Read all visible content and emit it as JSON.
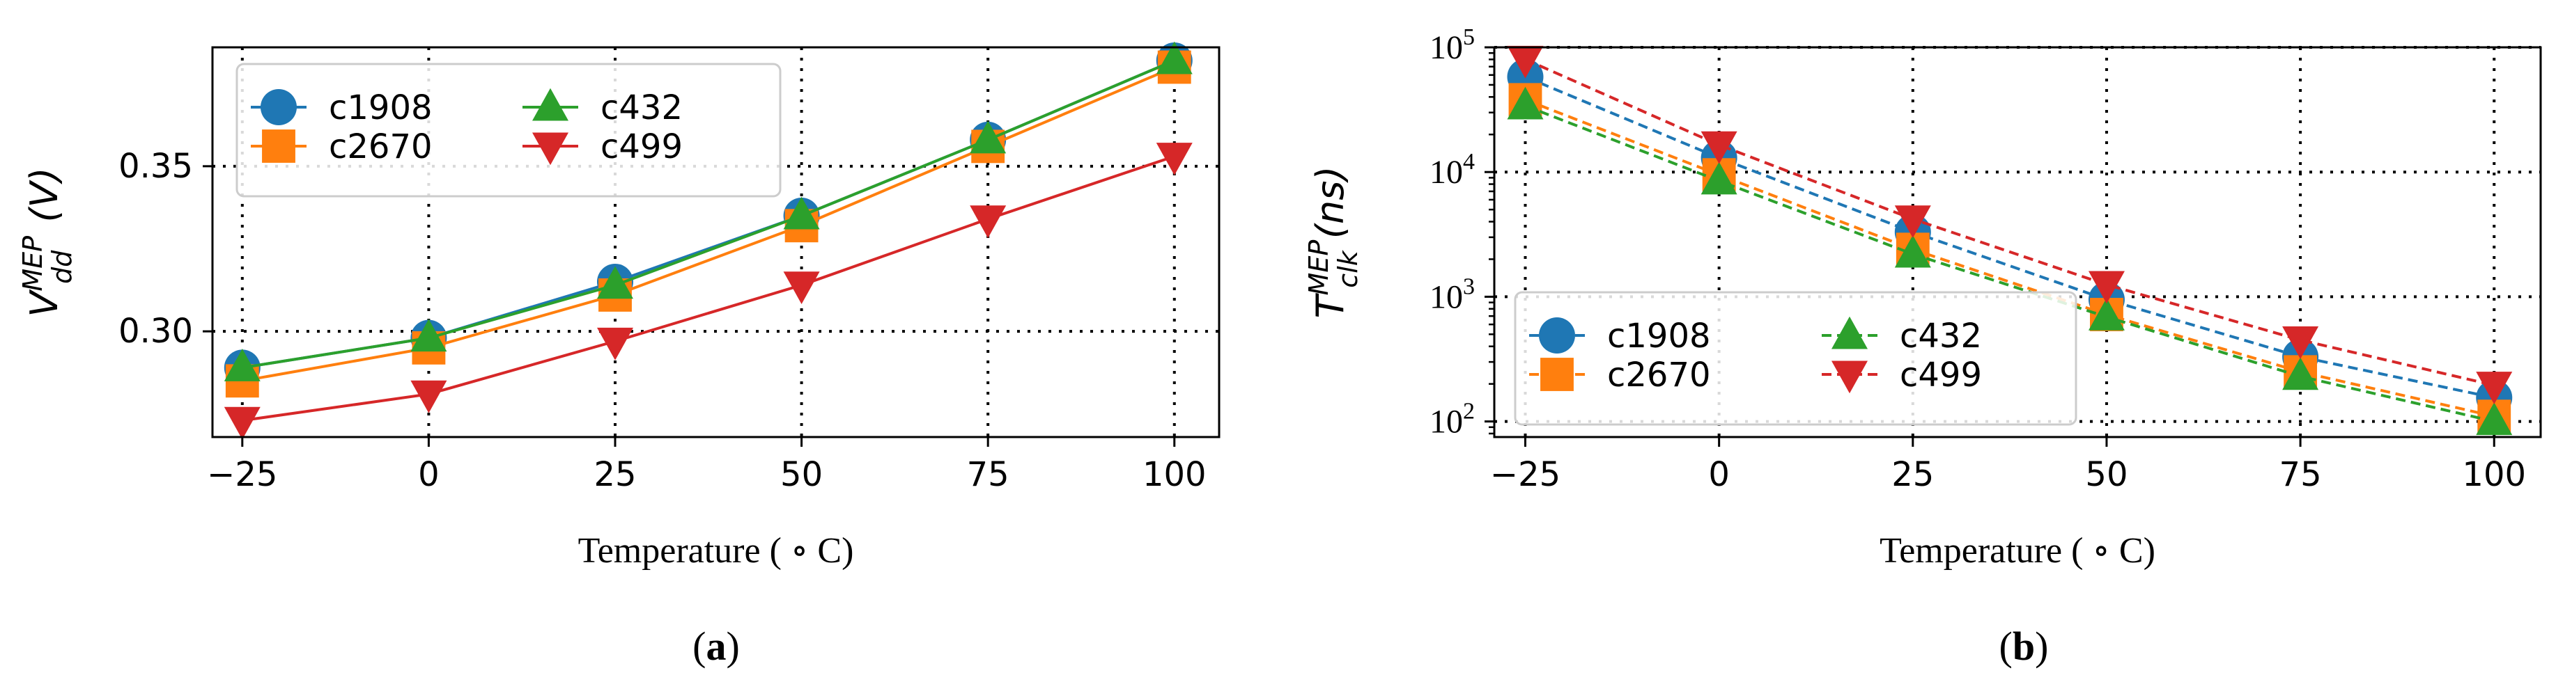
{
  "chart_data": [
    {
      "id": "a",
      "type": "line",
      "panel_label": "(a)",
      "title": "",
      "xlabel": "Temperature ( ∘ C)",
      "ylabel_base": "V",
      "ylabel_sup": "MEP",
      "ylabel_sub": "dd",
      "ylabel_unit": " (V)",
      "yscale": "linear",
      "x": [
        -25,
        0,
        25,
        50,
        75,
        100
      ],
      "xlim": [
        -29,
        106
      ],
      "ylim": [
        0.268,
        0.386
      ],
      "xticks": [
        -25,
        0,
        25,
        50,
        75,
        100
      ],
      "xtick_labels": [
        "−25",
        "0",
        "25",
        "50",
        "75",
        "100"
      ],
      "yticks": [
        0.3,
        0.35
      ],
      "ytick_labels": [
        "0.30",
        "0.35"
      ],
      "grid": "dotted",
      "line_style": "solid",
      "legend": {
        "placement": "upper-left",
        "columns": 2
      },
      "series": [
        {
          "name": "c1908",
          "marker": "circle",
          "color": "#1f77b4",
          "values": [
            0.289,
            0.298,
            0.315,
            0.335,
            0.358,
            0.382
          ]
        },
        {
          "name": "c2670",
          "marker": "square",
          "color": "#ff7f0e",
          "values": [
            0.285,
            0.295,
            0.311,
            0.332,
            0.356,
            0.38
          ]
        },
        {
          "name": "c432",
          "marker": "triangle-up",
          "color": "#2ca02c",
          "values": [
            0.289,
            0.298,
            0.314,
            0.335,
            0.358,
            0.382
          ]
        },
        {
          "name": "c499",
          "marker": "triangle-down",
          "color": "#d62728",
          "values": [
            0.273,
            0.281,
            0.297,
            0.314,
            0.334,
            0.353
          ]
        }
      ]
    },
    {
      "id": "b",
      "type": "line",
      "panel_label": "(b)",
      "title": "",
      "xlabel": "Temperature ( ∘ C)",
      "ylabel_base": "T",
      "ylabel_sup": "MEP",
      "ylabel_sub": "clk",
      "ylabel_unit": " (ns)",
      "yscale": "log",
      "x": [
        -25,
        0,
        25,
        50,
        75,
        100
      ],
      "xlim": [
        -29,
        106
      ],
      "ylim": [
        75,
        100000
      ],
      "xticks": [
        -25,
        0,
        25,
        50,
        75,
        100
      ],
      "xtick_labels": [
        "−25",
        "0",
        "25",
        "50",
        "75",
        "100"
      ],
      "yticks": [
        100,
        1000,
        10000,
        100000
      ],
      "ytick_base": "10",
      "ytick_exponents": [
        "2",
        "3",
        "4",
        "5"
      ],
      "grid": "dotted",
      "line_style": "dashed",
      "legend": {
        "placement": "lower-left",
        "columns": 2
      },
      "series": [
        {
          "name": "c1908",
          "marker": "circle",
          "color": "#1f77b4",
          "values": [
            58000,
            13000,
            3300,
            950,
            330,
            155
          ]
        },
        {
          "name": "c2670",
          "marker": "square",
          "color": "#ff7f0e",
          "values": [
            38000,
            9500,
            2400,
            720,
            250,
            110
          ]
        },
        {
          "name": "c432",
          "marker": "triangle-up",
          "color": "#2ca02c",
          "values": [
            34000,
            8500,
            2200,
            690,
            230,
            100
          ]
        },
        {
          "name": "c499",
          "marker": "triangle-down",
          "color": "#d62728",
          "values": [
            80000,
            16500,
            4200,
            1250,
            450,
            195
          ]
        }
      ]
    }
  ]
}
